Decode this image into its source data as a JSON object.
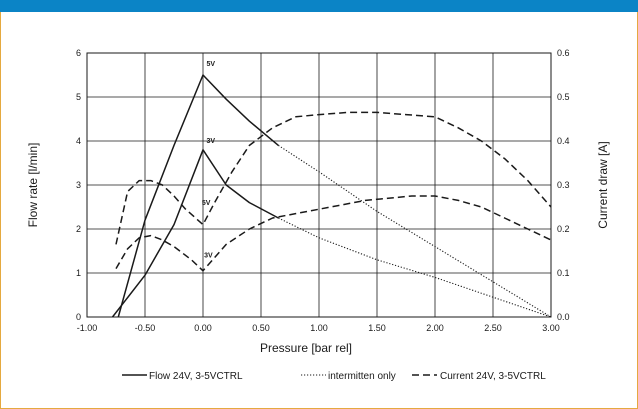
{
  "colors": {
    "top_bar": "#0b84c6",
    "frame_border": "#e5a93f",
    "line": "#1a1a1a",
    "grid": "#1a1a1a"
  },
  "chart_data": {
    "type": "line",
    "xlabel": "Pressure [bar rel]",
    "ylabel": "Flow rate [l/min]",
    "y2label": "Current draw [A]",
    "xlim": [
      -1.0,
      3.0
    ],
    "ylim": [
      0,
      6
    ],
    "y2lim": [
      0,
      0.6
    ],
    "x_ticks": [
      -1.0,
      -0.5,
      0.0,
      0.5,
      1.0,
      1.5,
      2.0,
      2.5,
      3.0
    ],
    "x_tick_labels": [
      "-1.00",
      "-0.50",
      "0.00",
      "0.50",
      "1.00",
      "1.50",
      "2.00",
      "2.50",
      "3.00"
    ],
    "y_ticks": [
      0,
      1,
      2,
      3,
      4,
      5,
      6
    ],
    "y_tick_labels": [
      "0",
      "1",
      "2",
      "3",
      "4",
      "5",
      "6"
    ],
    "y2_ticks": [
      0,
      0.1,
      0.2,
      0.3,
      0.4,
      0.5,
      0.6
    ],
    "y2_tick_labels": [
      "0.0",
      "0.1",
      "0.2",
      "0.3",
      "0.4",
      "0.5",
      "0.6"
    ],
    "grid": true,
    "legend_position": "bottom",
    "legend": [
      {
        "label": "Flow 24V, 3-5VCTRL",
        "style": "solid"
      },
      {
        "label": "intermitten only",
        "style": "dotted"
      },
      {
        "label": "Current 24V, 3-5VCTRL",
        "style": "dashed"
      }
    ],
    "series": [
      {
        "axis": "left",
        "style": "solid",
        "x": [
          -0.73,
          -0.5,
          -0.25,
          0.0,
          0.2,
          0.4,
          0.65
        ],
        "y": [
          0,
          2.2,
          3.9,
          5.5,
          4.95,
          4.45,
          3.9
        ]
      },
      {
        "axis": "left",
        "style": "dotted",
        "x": [
          0.65,
          1.0,
          1.5,
          2.0,
          2.5,
          3.0
        ],
        "y": [
          3.9,
          3.3,
          2.4,
          1.6,
          0.8,
          0
        ]
      },
      {
        "axis": "left",
        "style": "solid",
        "x": [
          -0.78,
          -0.5,
          -0.25,
          0.0,
          0.2,
          0.4,
          0.65
        ],
        "y": [
          0,
          0.95,
          2.1,
          3.8,
          3.0,
          2.6,
          2.25
        ]
      },
      {
        "axis": "left",
        "style": "dotted",
        "x": [
          0.65,
          1.0,
          1.5,
          2.0,
          2.5,
          3.0
        ],
        "y": [
          2.25,
          1.8,
          1.3,
          0.9,
          0.45,
          0
        ]
      },
      {
        "axis": "right",
        "style": "dashed",
        "x": [
          -0.75,
          -0.65,
          -0.55,
          -0.45,
          -0.35,
          -0.25,
          -0.15,
          0.0,
          0.1,
          0.25,
          0.4,
          0.6,
          0.8,
          1.0,
          1.25,
          1.5,
          1.75,
          2.0,
          2.2,
          2.4,
          2.6,
          2.8,
          3.0
        ],
        "y": [
          0.165,
          0.285,
          0.31,
          0.31,
          0.3,
          0.275,
          0.245,
          0.21,
          0.26,
          0.33,
          0.39,
          0.43,
          0.455,
          0.46,
          0.465,
          0.465,
          0.46,
          0.455,
          0.43,
          0.4,
          0.36,
          0.31,
          0.25
        ]
      },
      {
        "axis": "right",
        "style": "dashed",
        "x": [
          -0.75,
          -0.65,
          -0.55,
          -0.45,
          -0.35,
          -0.25,
          -0.1,
          0.0,
          0.2,
          0.4,
          0.6,
          1.0,
          1.4,
          1.8,
          2.0,
          2.2,
          2.4,
          2.6,
          2.8,
          3.0
        ],
        "y": [
          0.11,
          0.155,
          0.18,
          0.185,
          0.175,
          0.16,
          0.13,
          0.105,
          0.165,
          0.2,
          0.225,
          0.245,
          0.265,
          0.275,
          0.275,
          0.265,
          0.25,
          0.225,
          0.2,
          0.175
        ]
      }
    ],
    "annotations": [
      {
        "text": "5V",
        "x": 0.03,
        "y": 5.7
      },
      {
        "text": "3V",
        "x": 0.03,
        "y": 3.95
      },
      {
        "text": "5V",
        "x": -0.01,
        "y": 2.55
      },
      {
        "text": "3V",
        "x": 0.01,
        "y": 1.35
      }
    ]
  }
}
